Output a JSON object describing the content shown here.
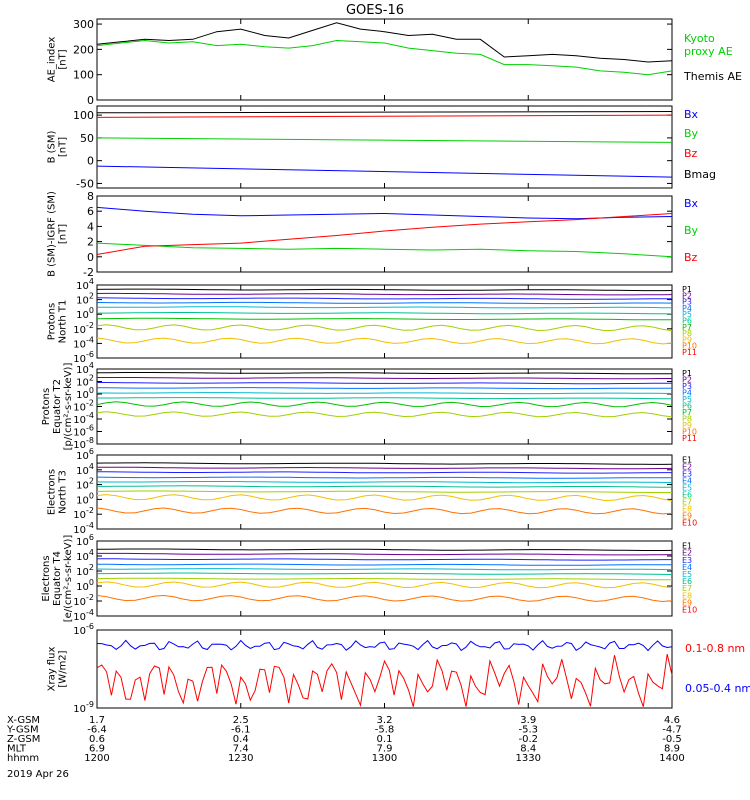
{
  "title": "GOES-16",
  "colors": {
    "black": "#000000",
    "red": "#ff0000",
    "green": "#00d000",
    "blue": "#0000ff",
    "p_colors": [
      "#000000",
      "#6a0090",
      "#2020ff",
      "#0070ff",
      "#00b8d0",
      "#00c090",
      "#00c000",
      "#a0d000",
      "#f0c000",
      "#ff7000",
      "#ff0000"
    ],
    "e_colors": [
      "#000000",
      "#6a0090",
      "#2020ff",
      "#0070ff",
      "#00b8d0",
      "#00c090",
      "#a0d000",
      "#f0c000",
      "#ff7000",
      "#ff0000"
    ]
  },
  "chart_data": [
    {
      "id": "ae",
      "type": "line",
      "ylabel": "AE_index\n[nT]",
      "ylim": [
        0,
        320
      ],
      "yticks": [
        {
          "v": 0,
          "t": "0"
        },
        {
          "v": 100,
          "t": "100"
        },
        {
          "v": 200,
          "t": "200"
        },
        {
          "v": 300,
          "t": "300"
        }
      ],
      "yscale": "linear",
      "x": [
        0,
        5,
        10,
        15,
        20,
        25,
        30,
        35,
        40,
        45,
        50,
        55,
        60,
        65,
        70,
        75,
        80,
        85,
        90,
        95,
        100,
        105,
        110,
        115,
        120
      ],
      "series": [
        {
          "name": "Kyoto\nproxy AE",
          "color": "#00d000",
          "values": [
            215,
            225,
            235,
            225,
            230,
            215,
            220,
            210,
            205,
            215,
            235,
            230,
            225,
            205,
            195,
            185,
            180,
            140,
            140,
            135,
            130,
            115,
            110,
            100,
            115
          ]
        },
        {
          "name": "Themis AE",
          "color": "#000000",
          "values": [
            220,
            230,
            240,
            235,
            240,
            270,
            280,
            255,
            245,
            275,
            305,
            280,
            270,
            255,
            260,
            240,
            240,
            170,
            175,
            180,
            175,
            165,
            160,
            150,
            155
          ]
        }
      ],
      "legend": [
        {
          "text": "Kyoto",
          "color": "#00d000"
        },
        {
          "text": "proxy AE",
          "color": "#00d000"
        },
        {
          "text": "Themis AE",
          "color": "#000000"
        }
      ]
    },
    {
      "id": "bsm",
      "type": "line",
      "ylabel": "B (SM)\n[nT]",
      "ylim": [
        -60,
        120
      ],
      "yticks": [
        {
          "v": -50,
          "t": "-50"
        },
        {
          "v": 0,
          "t": "0"
        },
        {
          "v": 50,
          "t": "50"
        },
        {
          "v": 100,
          "t": "100"
        }
      ],
      "yscale": "linear",
      "x": [
        0,
        120
      ],
      "series": [
        {
          "name": "Bx",
          "color": "#0000ff",
          "values": [
            -12,
            -36
          ]
        },
        {
          "name": "By",
          "color": "#00d000",
          "values": [
            50,
            40
          ]
        },
        {
          "name": "Bz",
          "color": "#ff0000",
          "values": [
            95,
            100
          ]
        },
        {
          "name": "Bmag",
          "color": "#000000",
          "values": [
            105,
            108
          ]
        }
      ],
      "legend": [
        {
          "text": "Bx",
          "color": "#0000ff"
        },
        {
          "text": "By",
          "color": "#00d000"
        },
        {
          "text": "Bz",
          "color": "#ff0000"
        },
        {
          "text": "Bmag",
          "color": "#000000"
        }
      ]
    },
    {
      "id": "bigrf",
      "type": "line",
      "ylabel": "B (SM)-IGRF (SM)\n[nT]",
      "ylim": [
        -2,
        8
      ],
      "yticks": [
        {
          "v": -2,
          "t": "-2"
        },
        {
          "v": 0,
          "t": "0"
        },
        {
          "v": 2,
          "t": "2"
        },
        {
          "v": 4,
          "t": "4"
        },
        {
          "v": 6,
          "t": "6"
        },
        {
          "v": 8,
          "t": "8"
        }
      ],
      "yscale": "linear",
      "x": [
        0,
        10,
        20,
        30,
        40,
        50,
        60,
        70,
        80,
        90,
        100,
        110,
        120
      ],
      "series": [
        {
          "name": "Bx",
          "color": "#0000ff",
          "values": [
            6.5,
            6.0,
            5.6,
            5.4,
            5.5,
            5.6,
            5.7,
            5.5,
            5.3,
            5.1,
            5.0,
            5.2,
            5.3
          ]
        },
        {
          "name": "By",
          "color": "#00d000",
          "values": [
            1.8,
            1.5,
            1.2,
            1.1,
            1.0,
            1.1,
            1.0,
            0.9,
            1.0,
            0.8,
            0.7,
            0.4,
            0.0
          ]
        },
        {
          "name": "Bz",
          "color": "#ff0000",
          "values": [
            0.3,
            1.4,
            1.6,
            1.8,
            2.3,
            2.8,
            3.4,
            3.9,
            4.3,
            4.6,
            4.9,
            5.3,
            5.7
          ]
        }
      ],
      "legend": [
        {
          "text": "Bx",
          "color": "#0000ff"
        },
        {
          "text": "By",
          "color": "#00d000"
        },
        {
          "text": "Bz",
          "color": "#ff0000"
        }
      ]
    },
    {
      "id": "pn",
      "type": "line",
      "ylabel": "Protons\nNorth T1",
      "ylim": [
        -6,
        4
      ],
      "yscale": "log",
      "yticks": [
        {
          "v": 4,
          "t": "10^4"
        },
        {
          "v": 2,
          "t": "10^2"
        },
        {
          "v": 0,
          "t": "10^0"
        },
        {
          "v": -2,
          "t": "10^-2"
        },
        {
          "v": -4,
          "t": "10^-4"
        },
        {
          "v": -6,
          "t": "10^-6"
        }
      ],
      "levels": [
        3.4,
        2.8,
        2.2,
        1.6,
        1.0,
        0.2,
        -0.6,
        -1.8,
        -3.6
      ],
      "legend": [
        {
          "text": "P1"
        },
        {
          "text": "P2"
        },
        {
          "text": "P3"
        },
        {
          "text": "P4"
        },
        {
          "text": "P5"
        },
        {
          "text": "P6"
        },
        {
          "text": "P7"
        },
        {
          "text": "P8"
        },
        {
          "text": "P9"
        },
        {
          "text": "P10"
        },
        {
          "text": "P11"
        }
      ]
    },
    {
      "id": "pe",
      "type": "line",
      "ylabel": "Protons\nEquator T2\n[p/(cm²-s-sr-keV)]",
      "ylim": [
        -8,
        4
      ],
      "yscale": "log",
      "yticks": [
        {
          "v": 4,
          "t": "10^4"
        },
        {
          "v": 2,
          "t": "10^2"
        },
        {
          "v": 0,
          "t": "10^0"
        },
        {
          "v": -2,
          "t": "10^-2"
        },
        {
          "v": -4,
          "t": "10^-4"
        },
        {
          "v": -6,
          "t": "10^-6"
        },
        {
          "v": -8,
          "t": "10^-8"
        }
      ],
      "levels": [
        3.4,
        2.6,
        1.8,
        1.0,
        0.2,
        -0.6,
        -1.6,
        -3.2
      ],
      "legend": [
        {
          "text": "P1"
        },
        {
          "text": "P2"
        },
        {
          "text": "P3"
        },
        {
          "text": "P4"
        },
        {
          "text": "P5"
        },
        {
          "text": "P6"
        },
        {
          "text": "P7"
        },
        {
          "text": "P8"
        },
        {
          "text": "P9"
        },
        {
          "text": "P10"
        },
        {
          "text": "P11"
        }
      ]
    },
    {
      "id": "en",
      "type": "line",
      "ylabel": "Electrons\nNorth T3",
      "ylim": [
        -4,
        6
      ],
      "yscale": "log",
      "yticks": [
        {
          "v": 6,
          "t": "10^6"
        },
        {
          "v": 4,
          "t": "10^4"
        },
        {
          "v": 2,
          "t": "10^2"
        },
        {
          "v": 0,
          "t": "10^0"
        },
        {
          "v": -2,
          "t": "10^-2"
        },
        {
          "v": -4,
          "t": "10^-4"
        }
      ],
      "levels": [
        4.9,
        4.3,
        3.7,
        3.0,
        2.4,
        1.8,
        1.1,
        0.3,
        -1.5
      ],
      "legend": [
        {
          "text": "E1"
        },
        {
          "text": "E2"
        },
        {
          "text": "E3"
        },
        {
          "text": "E4"
        },
        {
          "text": "E5"
        },
        {
          "text": "E6"
        },
        {
          "text": "E7"
        },
        {
          "text": "E8"
        },
        {
          "text": "E9"
        },
        {
          "text": "E10"
        }
      ]
    },
    {
      "id": "ee",
      "type": "line",
      "ylabel": "Electrons\nEquator T4\n[e/(cm²-s-sr-keV)]",
      "ylim": [
        -4,
        6
      ],
      "yscale": "log",
      "yticks": [
        {
          "v": 6,
          "t": "10^6"
        },
        {
          "v": 4,
          "t": "10^4"
        },
        {
          "v": 2,
          "t": "10^2"
        },
        {
          "v": 0,
          "t": "10^0"
        },
        {
          "v": -2,
          "t": "10^-2"
        },
        {
          "v": -4,
          "t": "10^-4"
        }
      ],
      "levels": [
        4.9,
        4.3,
        3.6,
        2.9,
        2.3,
        1.7,
        1.0,
        0.2,
        -1.6
      ],
      "legend": [
        {
          "text": "E1"
        },
        {
          "text": "E2"
        },
        {
          "text": "E3"
        },
        {
          "text": "E4"
        },
        {
          "text": "E5"
        },
        {
          "text": "E6"
        },
        {
          "text": "E7"
        },
        {
          "text": "E8"
        },
        {
          "text": "E9"
        },
        {
          "text": "E10"
        }
      ]
    },
    {
      "id": "xray",
      "type": "line",
      "ylabel": "Xray flux\n[W/m2]",
      "ylim": [
        -9,
        -6
      ],
      "yscale": "log",
      "yticks": [
        {
          "v": -6,
          "t": "10^-6"
        },
        {
          "v": -9,
          "t": "10^-9"
        }
      ],
      "series": [
        {
          "name": "0.1-0.8 nm",
          "color": "#ff0000"
        },
        {
          "name": "0.05-0.4 nm",
          "color": "#0000ff"
        }
      ],
      "legend": [
        {
          "text": "0.1-0.8 nm",
          "color": "#ff0000"
        },
        {
          "text": "0.05-0.4 nm",
          "color": "#0000ff"
        }
      ]
    }
  ],
  "xaxis": {
    "rows": [
      {
        "label": "X-GSM",
        "values": [
          "1.7",
          "2.5",
          "3.2",
          "3.9",
          "4.6"
        ]
      },
      {
        "label": "Y-GSM",
        "values": [
          "-6.4",
          "-6.1",
          "-5.8",
          "-5.3",
          "-4.7"
        ]
      },
      {
        "label": "Z-GSM",
        "values": [
          "0.6",
          "0.4",
          "0.1",
          "-0.2",
          "-0.5"
        ]
      },
      {
        "label": "MLT",
        "values": [
          "6.9",
          "7.4",
          "7.9",
          "8.4",
          "8.9"
        ]
      },
      {
        "label": "hhmm",
        "values": [
          "1200",
          "1230",
          "1300",
          "1330",
          "1400"
        ]
      }
    ],
    "date": "2019 Apr 26",
    "xlim": [
      0,
      120
    ],
    "ticks": [
      0,
      30,
      60,
      90,
      120
    ]
  }
}
